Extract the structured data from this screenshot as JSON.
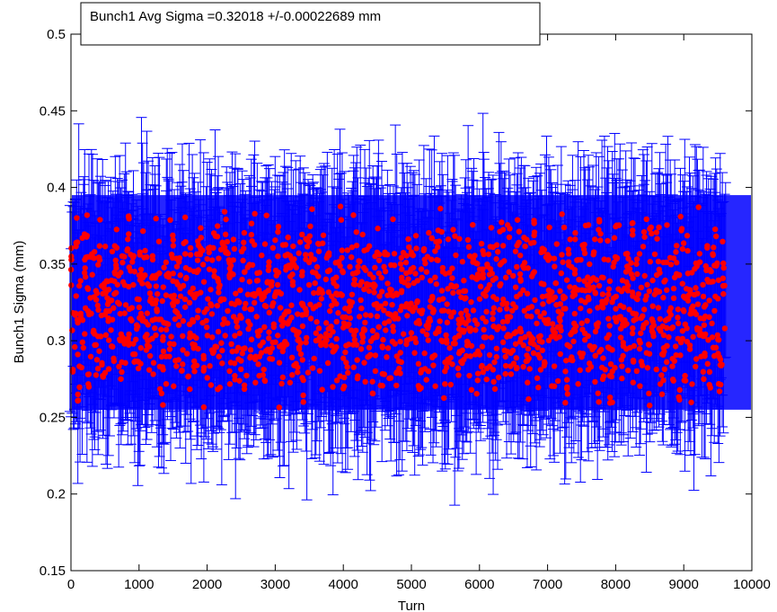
{
  "chart_data": {
    "type": "scatter",
    "title": "",
    "xlabel": "Turn",
    "ylabel": "Bunch1 Sigma (mm)",
    "xlim": [
      0,
      10000
    ],
    "ylim": [
      0.15,
      0.5
    ],
    "x_ticks": [
      0,
      1000,
      2000,
      3000,
      4000,
      5000,
      6000,
      7000,
      8000,
      9000,
      10000
    ],
    "y_ticks": [
      0.15,
      0.2,
      0.25,
      0.3,
      0.35,
      0.4,
      0.45,
      0.5
    ],
    "x_tick_labels": [
      "0",
      "1000",
      "2000",
      "3000",
      "4000",
      "5000",
      "6000",
      "7000",
      "8000",
      "9000",
      "10000"
    ],
    "y_tick_labels": [
      "0.15",
      "0.2",
      "0.25",
      "0.3",
      "0.35",
      "0.4",
      "0.45",
      "0.5"
    ],
    "grid": false,
    "legend": {
      "text": "Bunch1 Avg Sigma =0.32018 +/-0.00022689 mm",
      "placement": "top-left"
    },
    "colors": {
      "marker": "#ff0000",
      "errorbar": "#0000ff",
      "axis": "#000000"
    },
    "series": [
      {
        "kind": "errorbar",
        "mean": 0.32018,
        "mean_error": 0.00022689,
        "x_step": 50,
        "y": [
          0.318,
          0.336,
          0.305,
          0.327,
          0.341,
          0.312,
          0.322,
          0.299,
          0.334,
          0.316,
          0.345,
          0.309,
          0.325,
          0.331,
          0.302,
          0.319,
          0.338,
          0.314,
          0.327,
          0.306,
          0.321,
          0.343,
          0.311,
          0.329,
          0.317,
          0.336,
          0.301,
          0.324,
          0.315,
          0.339,
          0.308,
          0.326,
          0.319,
          0.342,
          0.304,
          0.331,
          0.313,
          0.322,
          0.337,
          0.298,
          0.328,
          0.316,
          0.335,
          0.309,
          0.323,
          0.341,
          0.312,
          0.33,
          0.305,
          0.318,
          0.334,
          0.31,
          0.327,
          0.344,
          0.303,
          0.321,
          0.315,
          0.338,
          0.307,
          0.325,
          0.332,
          0.3,
          0.319,
          0.34,
          0.311,
          0.328,
          0.316,
          0.335,
          0.304,
          0.322,
          0.345,
          0.313,
          0.326,
          0.309,
          0.337,
          0.318,
          0.302,
          0.331,
          0.315,
          0.343,
          0.306,
          0.324,
          0.32,
          0.339,
          0.308,
          0.329,
          0.314,
          0.333,
          0.301,
          0.323,
          0.341,
          0.31,
          0.327,
          0.317,
          0.336,
          0.305,
          0.321,
          0.344,
          0.312,
          0.33,
          0.319,
          0.338,
          0.303,
          0.325,
          0.316,
          0.334,
          0.309,
          0.328,
          0.342,
          0.306,
          0.322,
          0.313,
          0.339,
          0.3,
          0.326,
          0.318,
          0.335,
          0.311,
          0.331,
          0.307,
          0.324,
          0.345,
          0.315,
          0.329,
          0.302,
          0.32,
          0.337,
          0.312,
          0.333,
          0.308,
          0.323,
          0.341,
          0.316,
          0.327,
          0.304,
          0.319,
          0.336,
          0.31,
          0.332,
          0.318,
          0.343,
          0.306,
          0.325,
          0.314,
          0.338,
          0.301,
          0.329,
          0.321,
          0.335,
          0.309,
          0.326,
          0.34,
          0.313,
          0.322,
          0.305,
          0.334,
          0.317,
          0.331,
          0.303,
          0.324,
          0.346,
          0.311,
          0.328,
          0.319,
          0.337,
          0.307,
          0.323,
          0.315,
          0.342,
          0.3,
          0.33,
          0.318,
          0.334,
          0.31,
          0.326,
          0.339,
          0.312,
          0.321,
          0.306,
          0.336,
          0.316,
          0.329,
          0.302,
          0.325,
          0.344,
          0.314,
          0.331,
          0.308,
          0.32,
          0.338,
          0.311,
          0.327
        ]
      },
      {
        "kind": "points",
        "note": "",
        "values": []
      }
    ]
  }
}
